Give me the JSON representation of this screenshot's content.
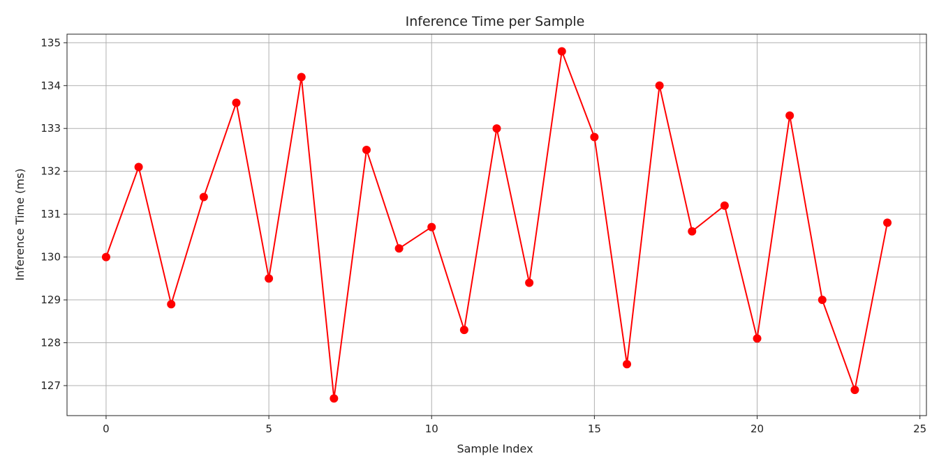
{
  "chart_data": {
    "type": "line",
    "title": "Inference Time per Sample",
    "xlabel": "Sample Index",
    "ylabel": "Inference Time (ms)",
    "xlim": [
      -1.2,
      25.2
    ],
    "ylim": [
      126.3,
      135.2
    ],
    "xticks": [
      0,
      5,
      10,
      15,
      20,
      25
    ],
    "yticks": [
      127,
      128,
      129,
      130,
      131,
      132,
      133,
      134,
      135
    ],
    "grid": true,
    "series": [
      {
        "color": "#ff0000",
        "marker": "circle",
        "x": [
          0,
          1,
          2,
          3,
          4,
          5,
          6,
          7,
          8,
          9,
          10,
          11,
          12,
          13,
          14,
          15,
          16,
          17,
          18,
          19,
          20,
          21,
          22,
          23,
          24
        ],
        "values": [
          130.0,
          132.1,
          128.9,
          131.4,
          133.6,
          129.5,
          134.2,
          126.7,
          132.5,
          130.2,
          130.7,
          128.3,
          133.0,
          129.4,
          134.8,
          132.8,
          127.5,
          134.0,
          130.6,
          131.2,
          128.1,
          133.3,
          129.0,
          126.9,
          130.8
        ]
      }
    ]
  }
}
